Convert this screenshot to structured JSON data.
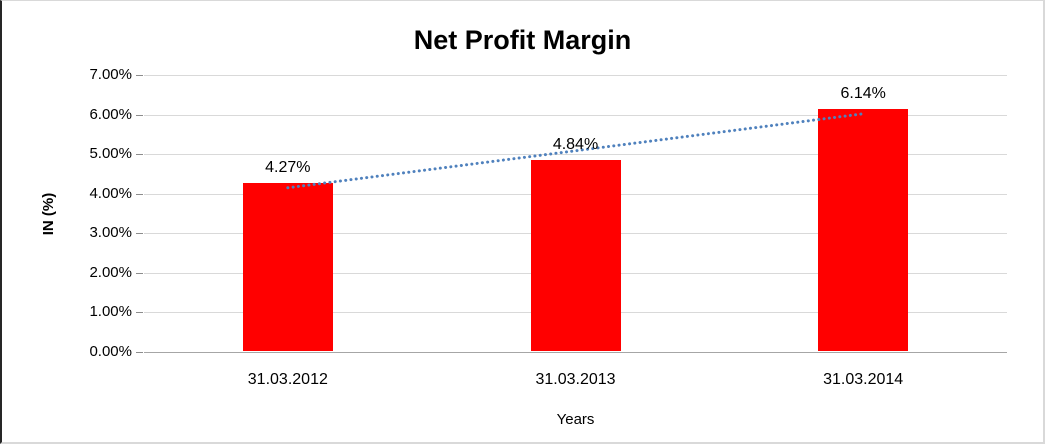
{
  "page": {
    "background_color": "#ffffff",
    "border_color": "#d9d9d9"
  },
  "chart_data": {
    "type": "bar",
    "title": "Net Profit Margin",
    "categories": [
      "31.03.2012",
      "31.03.2013",
      "31.03.2014"
    ],
    "values": [
      4.27,
      4.84,
      6.14
    ],
    "data_labels": [
      "4.27%",
      "4.84%",
      "6.14%"
    ],
    "xlabel": "Years",
    "ylabel": "IN (%)",
    "ylim": [
      0,
      7
    ],
    "ytick_step": 1,
    "ytick_labels": [
      "0.00%",
      "1.00%",
      "2.00%",
      "3.00%",
      "4.00%",
      "5.00%",
      "6.00%",
      "7.00%"
    ],
    "grid": true,
    "legend": "none",
    "bar_color": "#ff0000",
    "gridline_color": "#d9d9d9",
    "axis_line_color": "#a6a6a6",
    "trendline": {
      "type": "linear",
      "style": "dotted",
      "color": "#4f81bd",
      "start_value": 4.15,
      "end_value": 6.02
    }
  }
}
